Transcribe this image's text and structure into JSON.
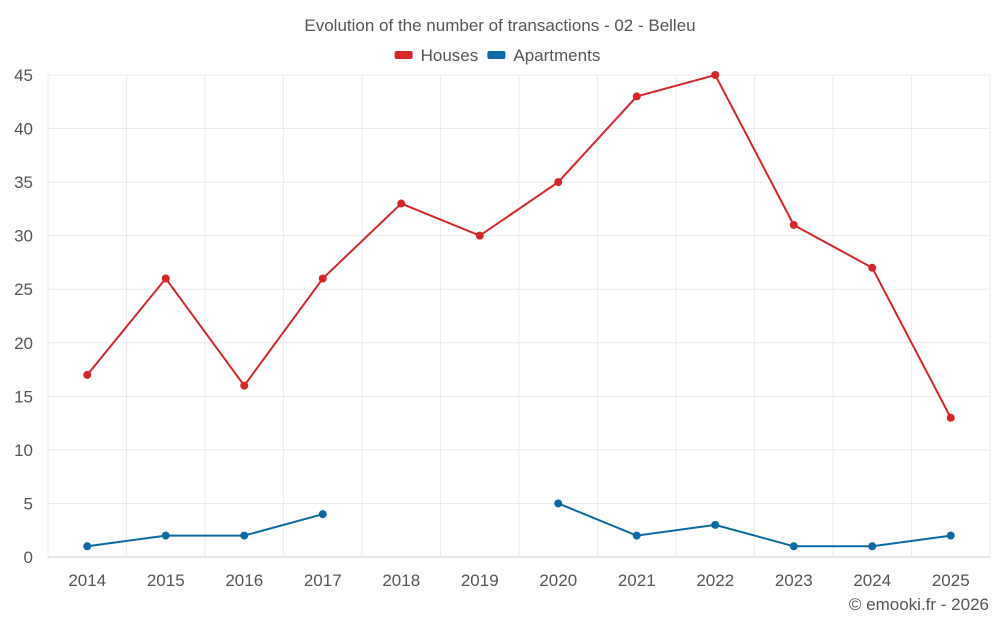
{
  "chart_data": {
    "type": "line",
    "title": "Evolution of the number of transactions - 02 - Belleu",
    "categories": [
      "2014",
      "2015",
      "2016",
      "2017",
      "2018",
      "2019",
      "2020",
      "2021",
      "2022",
      "2023",
      "2024",
      "2025"
    ],
    "ylim": [
      0,
      45
    ],
    "yticks": [
      0,
      5,
      10,
      15,
      20,
      25,
      30,
      35,
      40,
      45
    ],
    "grid": true,
    "legend_position": "top-center",
    "series": [
      {
        "name": "Houses",
        "color": "#d62728",
        "values": [
          17,
          26,
          16,
          26,
          33,
          30,
          35,
          43,
          45,
          31,
          27,
          13
        ]
      },
      {
        "name": "Apartments",
        "color": "#0a6aa1",
        "values": [
          1,
          2,
          2,
          4,
          null,
          null,
          5,
          2,
          3,
          1,
          1,
          2
        ]
      }
    ],
    "credit": "© emooki.fr - 2026"
  }
}
